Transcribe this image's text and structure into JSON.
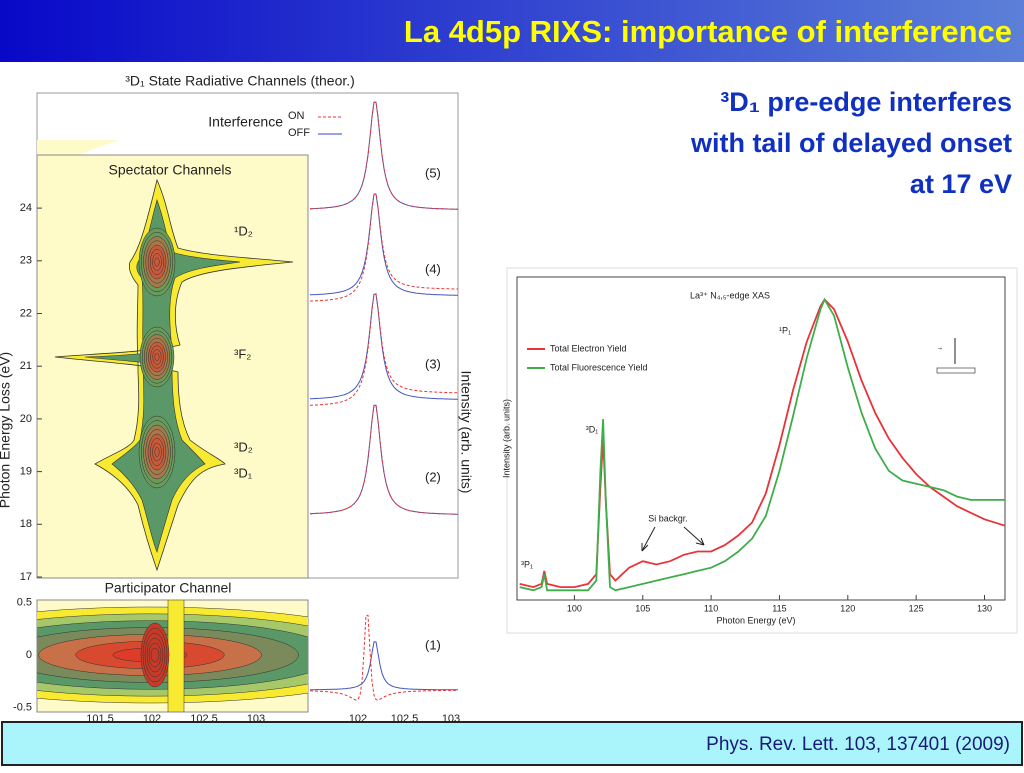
{
  "header": {
    "title": "La 4d5p RIXS: importance of interference"
  },
  "headline": {
    "lines": [
      "³D₁ pre-edge interferes",
      "with tail of delayed onset",
      "at 17 eV"
    ]
  },
  "theory_figure": {
    "title": "³D₁ State Radiative Channels (theor.)",
    "legend_title": "Interference",
    "legend": [
      "ON",
      "OFF"
    ],
    "spectator_title": "Spectator Channels",
    "participator_title": "Participator Channel",
    "y_axis_label": "Photon Energy Loss (eV)",
    "intensity_label": "Intensity (arb. units)",
    "spectator_yticks": [
      17,
      18,
      19,
      20,
      21,
      22,
      23,
      24
    ],
    "participator_yticks": [
      0.5,
      0,
      -0.5
    ],
    "xticks": [
      101.5,
      102,
      102.5,
      103
    ],
    "spectra_xticks": [
      102,
      102.5,
      103
    ],
    "state_labels": [
      "¹D₂",
      "³F₂",
      "³D₂",
      "³D₁"
    ],
    "panel_labels": [
      "(5)",
      "(4)",
      "(3)",
      "(2)",
      "(1)"
    ]
  },
  "chart_data": {
    "type": "line",
    "title": "La³⁺ N₄,₅-edge XAS",
    "xlabel": "Photon Energy (eV)",
    "ylabel": "Intensity (arb. units)",
    "x": [
      96,
      97,
      97.6,
      97.8,
      98,
      99,
      100,
      101,
      101.6,
      101.9,
      102.1,
      102.3,
      102.6,
      103,
      104,
      105,
      106,
      107,
      108,
      109,
      110,
      111,
      112,
      113,
      114,
      115,
      116,
      117,
      118,
      118.3,
      119,
      120,
      121,
      122,
      123,
      124,
      125,
      126,
      127,
      128,
      129,
      130,
      131.5
    ],
    "xlim": [
      95.8,
      131.5
    ],
    "xticks": [
      100,
      105,
      110,
      115,
      120,
      125,
      130
    ],
    "ylim": [
      0,
      100
    ],
    "legend": "upper left",
    "series": [
      {
        "name": "Total Electron Yield",
        "color": "#e8333a",
        "values": [
          5,
          4,
          5,
          9,
          5,
          4,
          4,
          5,
          8,
          35,
          50,
          30,
          8,
          6,
          10,
          12,
          11,
          12,
          14,
          15,
          15,
          17,
          20,
          24,
          33,
          48,
          65,
          80,
          91,
          93,
          90,
          80,
          68,
          58,
          50,
          44,
          39,
          35,
          32,
          29,
          27,
          25,
          23
        ]
      },
      {
        "name": "Total Fluorescence Yield",
        "color": "#3fae4a",
        "values": [
          4,
          3,
          4,
          8,
          3,
          3,
          3,
          3,
          6,
          40,
          56,
          30,
          4,
          3,
          4,
          5,
          6,
          7,
          8,
          9,
          10,
          12,
          15,
          19,
          26,
          40,
          57,
          75,
          90,
          93,
          88,
          72,
          58,
          47,
          40,
          37,
          36,
          35,
          34,
          32,
          31,
          31,
          31
        ]
      }
    ],
    "annotations": [
      "¹P₁",
      "³D₁",
      "³P₁",
      "Si backgr."
    ]
  },
  "footer": {
    "citation": "Phys. Rev. Lett. 103, 137401 (2009)"
  }
}
